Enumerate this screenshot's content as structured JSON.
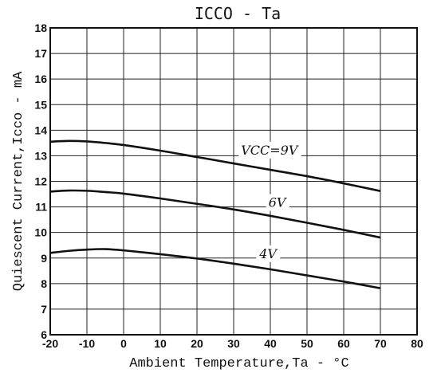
{
  "chart_data": {
    "type": "line",
    "title": "ICCO - Ta",
    "xlabel": "Ambient Temperature,Ta - °C",
    "ylabel": "Quiescent Current,Icco - mA",
    "xlim": [
      -20,
      80
    ],
    "ylim": [
      6,
      18
    ],
    "x_ticks": [
      "-20",
      "-10",
      "0",
      "10",
      "20",
      "30",
      "40",
      "50",
      "60",
      "70",
      "80"
    ],
    "y_ticks": [
      "6",
      "7",
      "8",
      "9",
      "10",
      "11",
      "12",
      "13",
      "14",
      "15",
      "16",
      "17",
      "18"
    ],
    "grid": true,
    "series": [
      {
        "name": "VCC=9V",
        "x": [
          -20,
          -15,
          -10,
          -5,
          0,
          10,
          20,
          30,
          40,
          50,
          60,
          70
        ],
        "y": [
          13.55,
          13.58,
          13.56,
          13.5,
          13.42,
          13.2,
          12.95,
          12.7,
          12.45,
          12.2,
          11.92,
          11.62
        ]
      },
      {
        "name": "6V",
        "x": [
          -20,
          -15,
          -10,
          -5,
          0,
          10,
          20,
          30,
          40,
          50,
          60,
          70
        ],
        "y": [
          11.6,
          11.64,
          11.63,
          11.58,
          11.52,
          11.33,
          11.12,
          10.9,
          10.65,
          10.38,
          10.1,
          9.8
        ]
      },
      {
        "name": "4V",
        "x": [
          -20,
          -15,
          -10,
          -5,
          0,
          10,
          20,
          30,
          40,
          50,
          60,
          70
        ],
        "y": [
          9.2,
          9.28,
          9.33,
          9.35,
          9.3,
          9.15,
          8.98,
          8.78,
          8.56,
          8.32,
          8.08,
          7.82
        ]
      }
    ],
    "annotations": [
      {
        "text": "VCC=9V",
        "series": "VCC=9V"
      },
      {
        "text": "6V",
        "series": "6V"
      },
      {
        "text": "4V",
        "series": "4V"
      }
    ]
  }
}
